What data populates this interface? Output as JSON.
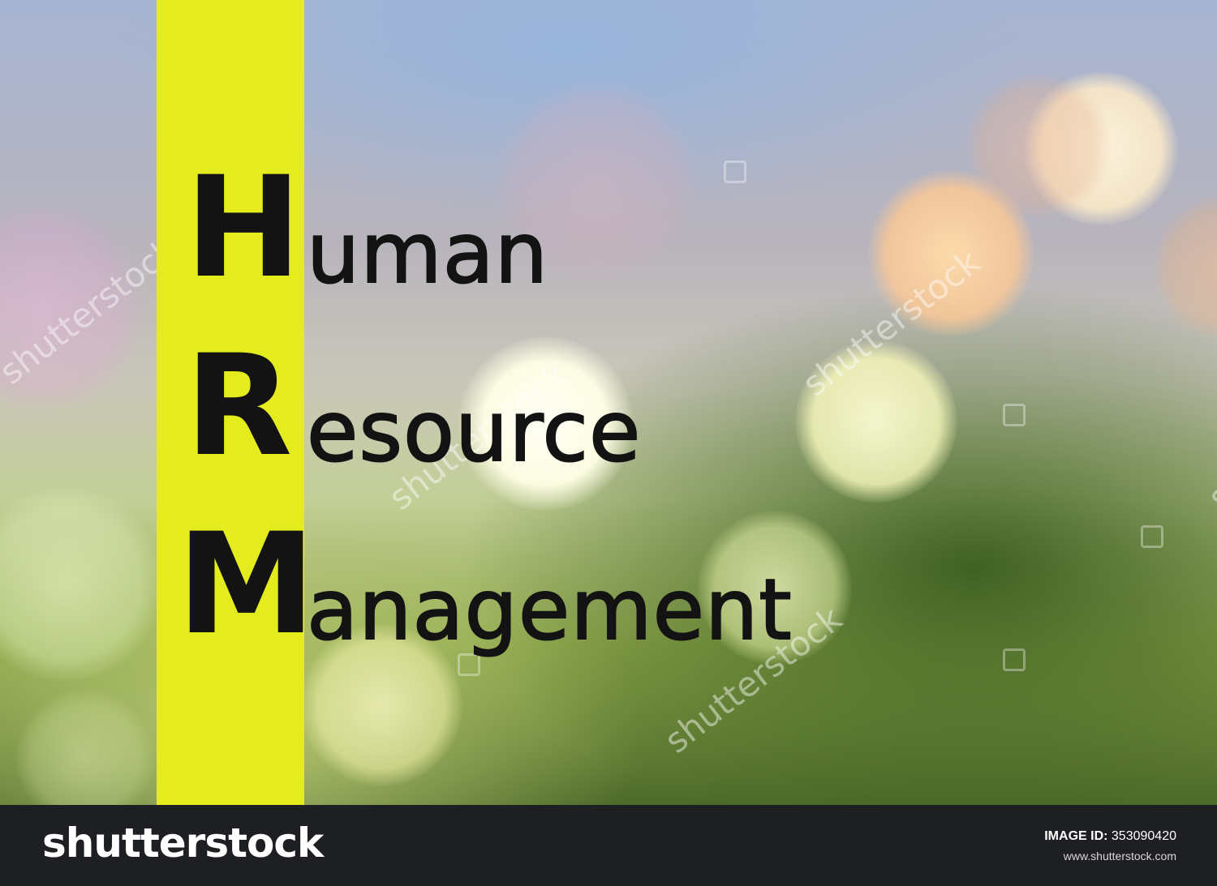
{
  "acronym": [
    {
      "letter": "H",
      "rest": "uman"
    },
    {
      "letter": "R",
      "rest": "esource"
    },
    {
      "letter": "M",
      "rest": "anagement"
    }
  ],
  "watermark": {
    "text": "shutterstock"
  },
  "footer": {
    "logo_text": "shutterstock",
    "image_id_label": "IMAGE ID:",
    "image_id_value": "353090420",
    "site": "www.shutterstock.com"
  },
  "colors": {
    "band": "#e4ec1e",
    "text": "#131313",
    "footer": "#1d1f22"
  }
}
